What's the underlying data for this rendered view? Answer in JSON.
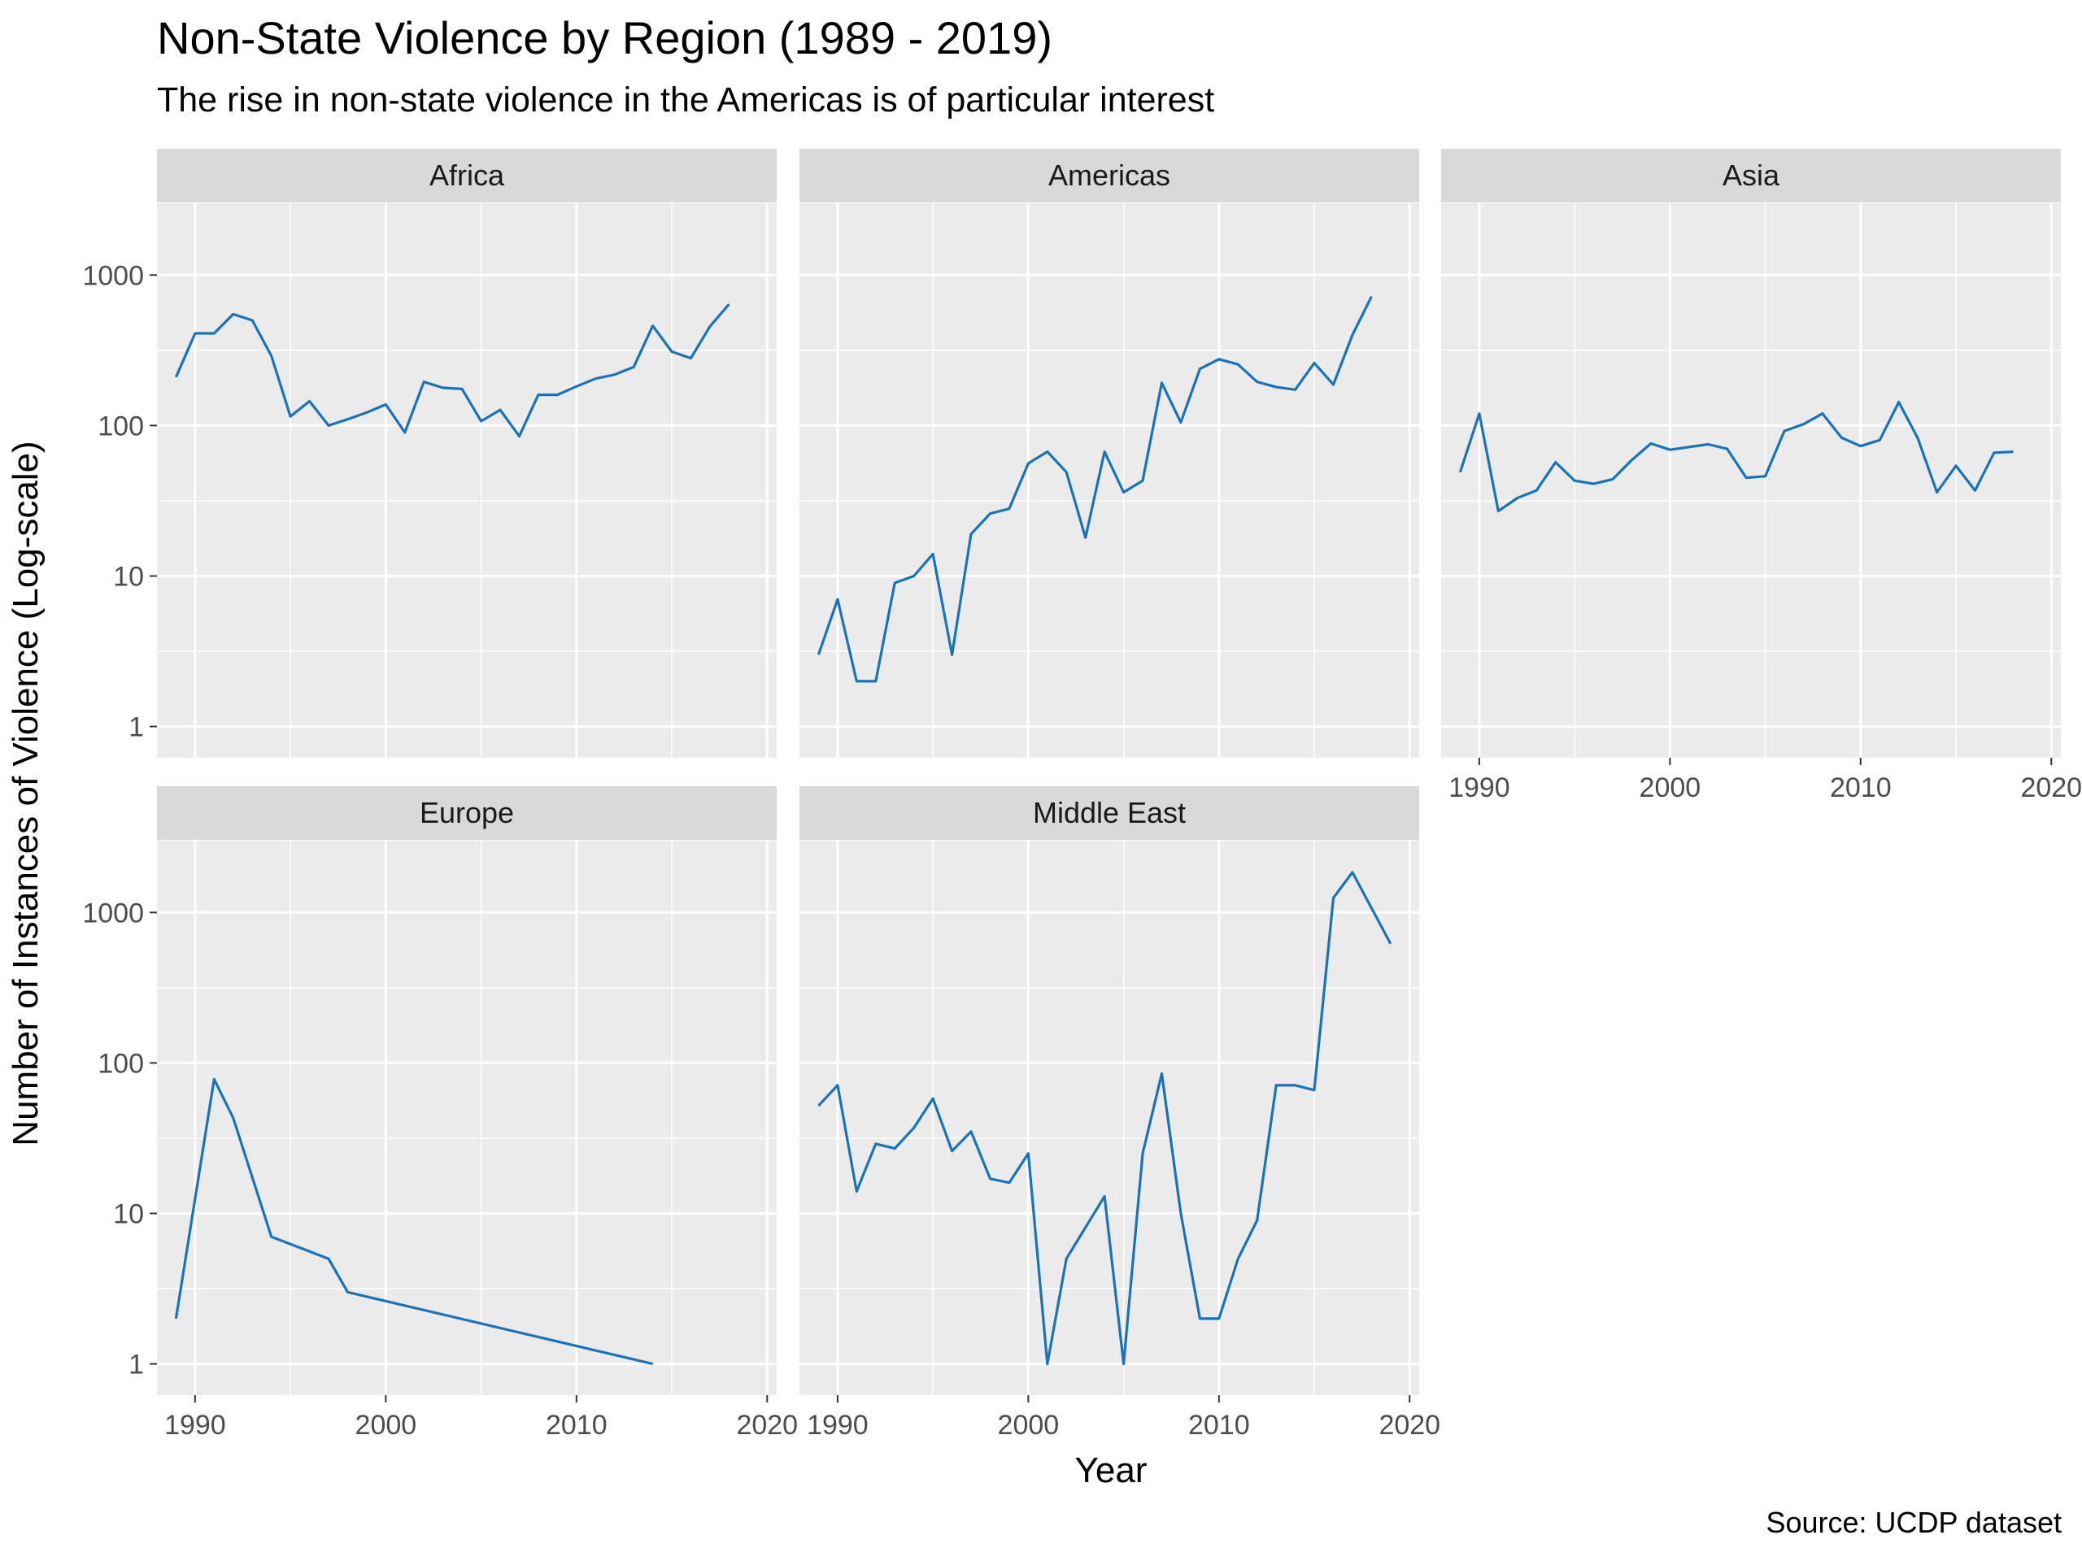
{
  "chart_data": {
    "type": "line",
    "title": "Non-State Violence by Region (1989 - 2019)",
    "subtitle": "The rise in non-state violence in the Americas is of particular interest",
    "xlabel": "Year",
    "ylabel": "Number of Instances of Violence (Log-scale)",
    "caption": "Source: UCDP dataset",
    "y_scale": "log10",
    "xlim": [
      1988,
      2020.5
    ],
    "ylim": [
      0.62,
      3000
    ],
    "x_ticks": [
      1990,
      2000,
      2010,
      2020
    ],
    "x_tick_labels": [
      "1990",
      "2000",
      "2010",
      "2020"
    ],
    "y_ticks": [
      1,
      10,
      100,
      1000
    ],
    "y_tick_labels": [
      "1",
      "10",
      "100",
      "1000"
    ],
    "grid": true,
    "legend": "none",
    "line_color": "#1a73b8",
    "panel_background": "#ebebeb",
    "strip_background": "#d9d9d9",
    "facets": [
      {
        "name": "Africa",
        "x": [
          1989,
          1990,
          1991,
          1992,
          1993,
          1994,
          1995,
          1996,
          1997,
          1998,
          1999,
          2000,
          2001,
          2002,
          2003,
          2004,
          2005,
          2006,
          2007,
          2008,
          2009,
          2010,
          2011,
          2012,
          2013,
          2014,
          2015,
          2016,
          2017,
          2018
        ],
        "values": [
          210,
          410,
          410,
          550,
          500,
          290,
          115,
          145,
          100,
          110,
          122,
          138,
          90,
          195,
          178,
          175,
          107,
          127,
          85,
          160,
          160,
          182,
          205,
          218,
          245,
          460,
          310,
          280,
          455,
          640
        ]
      },
      {
        "name": "Americas",
        "x": [
          1989,
          1990,
          1991,
          1992,
          1993,
          1994,
          1995,
          1996,
          1997,
          1998,
          1999,
          2000,
          2001,
          2002,
          2003,
          2004,
          2005,
          2006,
          2007,
          2008,
          2009,
          2010,
          2011,
          2012,
          2013,
          2014,
          2015,
          2016,
          2017,
          2018
        ],
        "values": [
          3,
          7,
          2,
          2,
          9,
          10,
          14,
          3,
          19,
          26,
          28,
          56,
          67,
          49,
          18,
          67,
          36,
          43,
          192,
          105,
          238,
          276,
          255,
          195,
          180,
          173,
          260,
          187,
          400,
          720
        ]
      },
      {
        "name": "Asia",
        "x": [
          1989,
          1990,
          1991,
          1992,
          1993,
          1994,
          1995,
          1996,
          1997,
          1998,
          1999,
          2000,
          2001,
          2002,
          2003,
          2004,
          2005,
          2006,
          2007,
          2008,
          2009,
          2010,
          2011,
          2012,
          2013,
          2014,
          2015,
          2016,
          2017,
          2018
        ],
        "values": [
          49,
          120,
          27,
          33,
          37,
          57,
          43,
          41,
          44,
          59,
          76,
          69,
          72,
          75,
          70,
          45,
          46,
          92,
          102,
          120,
          83,
          73,
          80,
          143,
          82,
          36,
          54,
          37,
          66,
          67
        ]
      },
      {
        "name": "Europe",
        "x": [
          1989,
          1991,
          1992,
          1994,
          1997,
          1998,
          2014
        ],
        "values": [
          2,
          78,
          43,
          7,
          5,
          3,
          1
        ]
      },
      {
        "name": "Middle East",
        "x": [
          1989,
          1990,
          1991,
          1992,
          1993,
          1994,
          1995,
          1996,
          1997,
          1998,
          1999,
          2000,
          2001,
          2002,
          2004,
          2005,
          2006,
          2007,
          2008,
          2009,
          2010,
          2011,
          2012,
          2013,
          2014,
          2015,
          2016,
          2017,
          2019
        ],
        "values": [
          52,
          71,
          14,
          29,
          27,
          37,
          58,
          26,
          35,
          17,
          16,
          25,
          1,
          5,
          13,
          1,
          25,
          85,
          10,
          2,
          2,
          5,
          9,
          71,
          71,
          66,
          1250,
          1850,
          620
        ]
      }
    ]
  }
}
